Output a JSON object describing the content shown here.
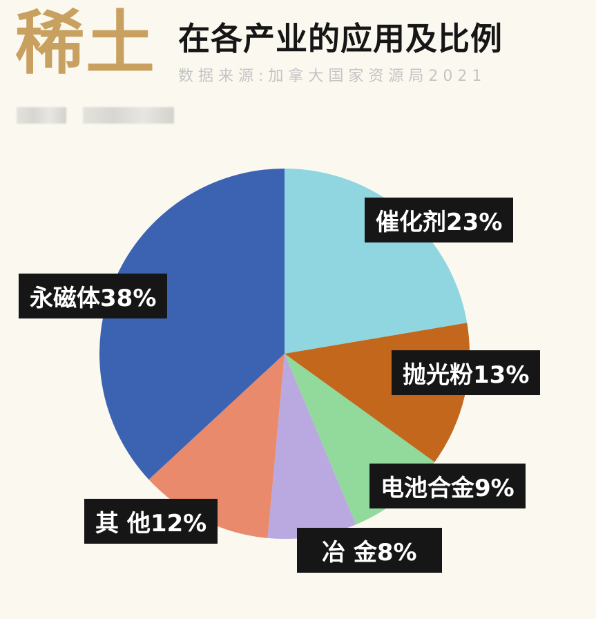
{
  "header": {
    "big_title": "稀土",
    "title": "在各产业的应用及比例",
    "source": "数据来源:加拿大国家资源局2021"
  },
  "chart_data": {
    "type": "pie",
    "start": "top",
    "direction": "clockwise",
    "categories": [
      "催化剂",
      "抛光粉",
      "电池合金",
      "冶金",
      "其他",
      "永磁体"
    ],
    "values": [
      23,
      13,
      9,
      8,
      12,
      38
    ],
    "labels": [
      "催化剂23%",
      "抛光粉13%",
      "电池合金9%",
      "冶 金8%",
      "其 他12%",
      "永磁体38%"
    ],
    "colors": [
      "#8fd6e0",
      "#c2671c",
      "#92d99c",
      "#baa9e0",
      "#ea8a6c",
      "#3c63b2"
    ]
  }
}
